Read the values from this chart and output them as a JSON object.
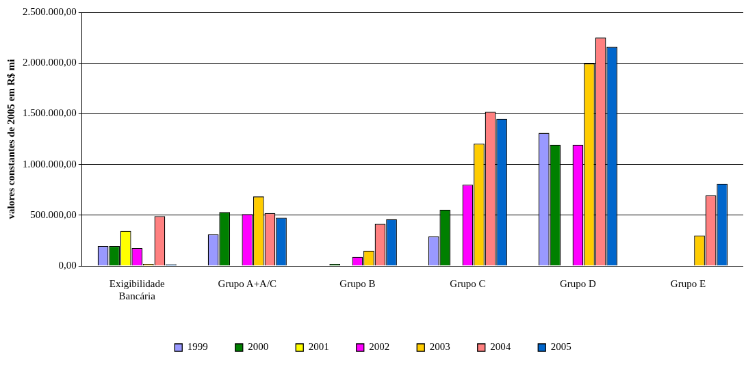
{
  "chart_data": {
    "type": "bar",
    "ylabel": "valores constantes de 2005 em R$ mi",
    "categories": [
      "Exigibilidade Bancária",
      "Grupo A+A/C",
      "Grupo B",
      "Grupo C",
      "Grupo D",
      "Grupo E"
    ],
    "series": [
      {
        "name": "1999",
        "color": "#9999ff",
        "values": [
          195000,
          310000,
          null,
          290000,
          1310000,
          null
        ]
      },
      {
        "name": "2000",
        "color": "#008000",
        "values": [
          195000,
          530000,
          20000,
          555000,
          1195000,
          null
        ]
      },
      {
        "name": "2001",
        "color": "#ffff00",
        "values": [
          345000,
          null,
          null,
          null,
          null,
          null
        ]
      },
      {
        "name": "2002",
        "color": "#ff00ff",
        "values": [
          175000,
          510000,
          90000,
          800000,
          1195000,
          null
        ]
      },
      {
        "name": "2003",
        "color": "#ffcc00",
        "values": [
          20000,
          685000,
          150000,
          1205000,
          1995000,
          300000
        ]
      },
      {
        "name": "2004",
        "color": "#ff8080",
        "values": [
          490000,
          520000,
          415000,
          1520000,
          2250000,
          695000
        ]
      },
      {
        "name": "2005",
        "color": "#0066cc",
        "values": [
          15000,
          475000,
          460000,
          1450000,
          2160000,
          810000
        ]
      }
    ],
    "ylim": [
      0,
      2500000
    ],
    "yticks": [
      {
        "value": 0,
        "label": "0,00"
      },
      {
        "value": 500000,
        "label": "500.000,00"
      },
      {
        "value": 1000000,
        "label": "1.000.000,00"
      },
      {
        "value": 1500000,
        "label": "1.500.000,00"
      },
      {
        "value": 2000000,
        "label": "2.000.000,00"
      },
      {
        "value": 2500000,
        "label": "2.500.000,00"
      }
    ],
    "grid": "y",
    "legend": "bottom"
  }
}
